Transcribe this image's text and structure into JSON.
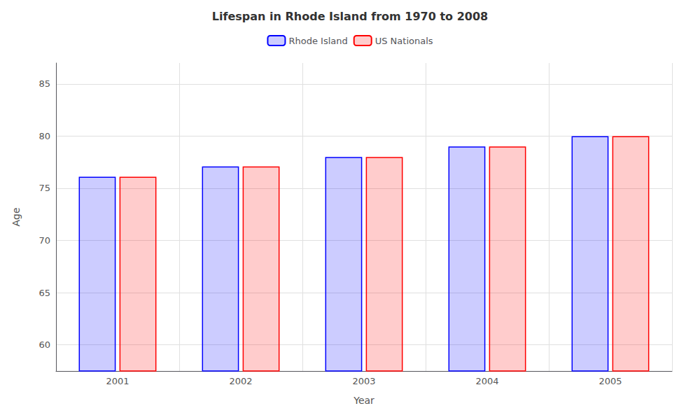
{
  "chart_data": {
    "type": "bar",
    "title": "Lifespan in Rhode Island from 1970 to 2008",
    "x_label": "Year",
    "y_label": "Age",
    "categories": [
      "2001",
      "2002",
      "2003",
      "2004",
      "2005"
    ],
    "series": [
      {
        "name": "Rhode Island",
        "color": "#0000ff",
        "values": [
          76.1,
          77.1,
          78.0,
          79.0,
          80.0
        ]
      },
      {
        "name": "US Nationals",
        "color": "#ff0000",
        "values": [
          76.1,
          77.1,
          78.0,
          79.0,
          80.0
        ]
      }
    ],
    "ylim": [
      57.5,
      87
    ],
    "yticks": [
      60,
      65,
      70,
      75,
      80,
      85
    ],
    "grid": true,
    "legend": "upper center"
  }
}
